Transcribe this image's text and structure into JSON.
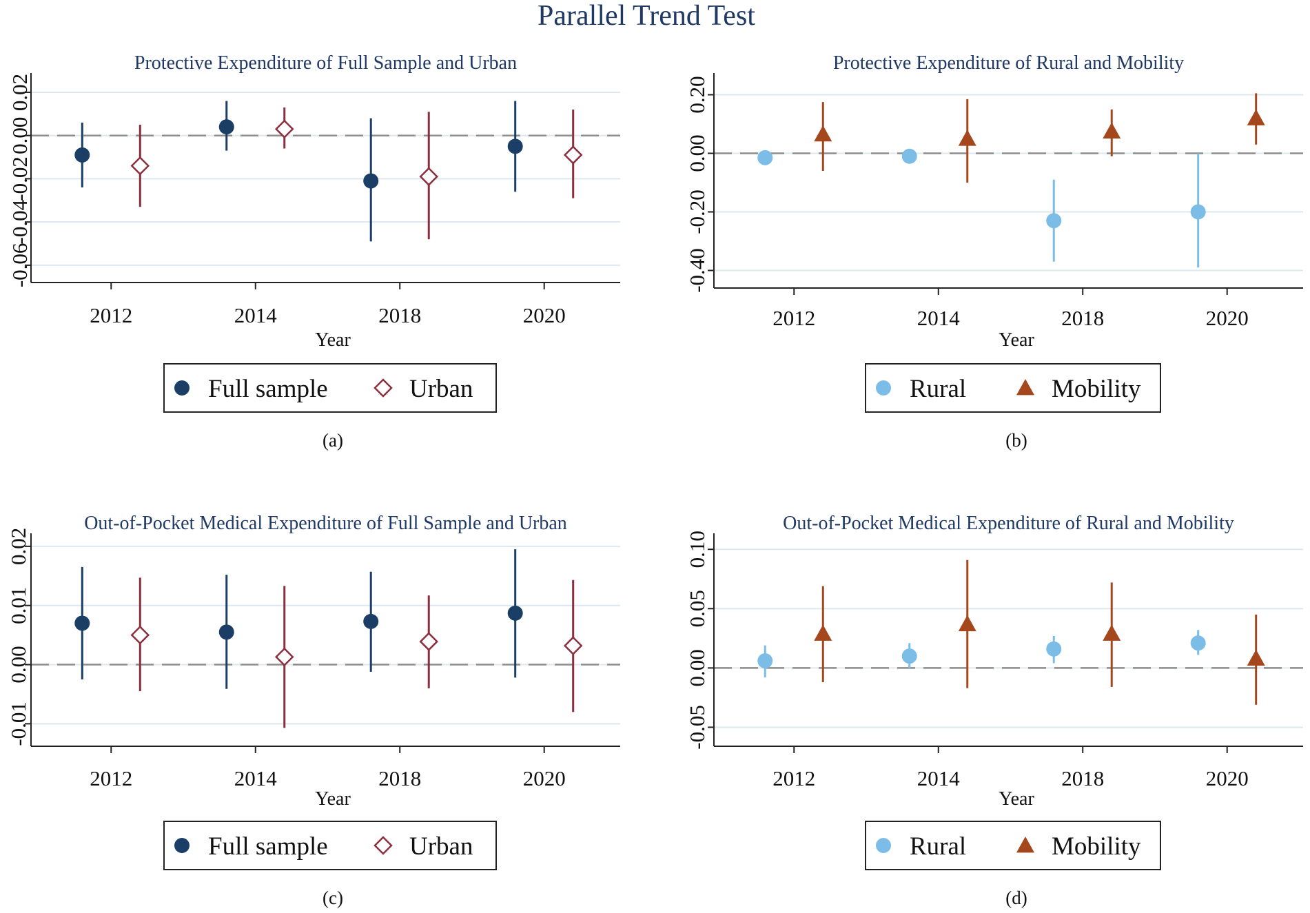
{
  "figure_title": "Parallel Trend Test",
  "colors": {
    "full_sample": "#1a3e66",
    "urban": "#8b2e3e",
    "rural": "#7bbde6",
    "mobility": "#a5471d",
    "title": "#1f3864",
    "grid": "#dde7ee",
    "zero_line": "#8c8c8c"
  },
  "chart_data": [
    {
      "type": "scatter",
      "caption": "(a)",
      "title": "Protective Expenditure of Full Sample and Urban",
      "xlabel": "Year",
      "ylabel": "",
      "categories": [
        "2012",
        "2014",
        "2018",
        "2020"
      ],
      "ylim": [
        -0.068,
        0.027
      ],
      "yticks": [
        -0.06,
        -0.04,
        -0.02,
        0.0,
        0.02
      ],
      "ytick_labels": [
        "-0.06",
        "-0.04",
        "-0.02",
        "0.00",
        "0.02"
      ],
      "grid": true,
      "legend_position": "bottom",
      "series": [
        {
          "name": "Full sample",
          "marker": "circle",
          "color_key": "full_sample",
          "values": [
            -0.009,
            0.004,
            -0.021,
            -0.005
          ],
          "lower": [
            -0.024,
            -0.007,
            -0.049,
            -0.026
          ],
          "upper": [
            0.006,
            0.016,
            0.008,
            0.016
          ]
        },
        {
          "name": "Urban",
          "marker": "diamond",
          "color_key": "urban",
          "values": [
            -0.014,
            0.003,
            -0.019,
            -0.009
          ],
          "lower": [
            -0.033,
            -0.006,
            -0.048,
            -0.029
          ],
          "upper": [
            0.005,
            0.013,
            0.011,
            0.012
          ]
        }
      ]
    },
    {
      "type": "scatter",
      "caption": "(b)",
      "title": "Protective Expenditure of Rural and Mobility",
      "xlabel": "Year",
      "ylabel": "",
      "categories": [
        "2012",
        "2014",
        "2018",
        "2020"
      ],
      "ylim": [
        -0.46,
        0.26
      ],
      "yticks": [
        -0.4,
        -0.2,
        0.0,
        0.2
      ],
      "ytick_labels": [
        "-0.40",
        "-0.20",
        "0.00",
        "0.20"
      ],
      "grid": true,
      "legend_position": "bottom",
      "series": [
        {
          "name": "Rural",
          "marker": "circle",
          "color_key": "rural",
          "values": [
            -0.015,
            -0.01,
            -0.23,
            -0.2
          ],
          "lower": null,
          "upper": [
            null,
            null,
            -0.09,
            0.0
          ],
          "upper_values_note": "",
          "ci_low": [
            -0.015,
            -0.01,
            -0.37,
            -0.39
          ],
          "ci_high": [
            -0.015,
            -0.01,
            -0.09,
            0.0
          ]
        },
        {
          "name": "Mobility",
          "marker": "triangle",
          "color_key": "mobility",
          "values": [
            0.065,
            0.05,
            0.075,
            0.12
          ],
          "ci_low": [
            -0.06,
            -0.1,
            -0.01,
            0.03
          ],
          "ci_high": [
            0.175,
            0.185,
            0.15,
            0.205
          ]
        }
      ]
    },
    {
      "type": "scatter",
      "caption": "(c)",
      "title": "Out-of-Pocket Medical Expenditure of Full Sample and Urban",
      "xlabel": "Year",
      "ylabel": "",
      "categories": [
        "2012",
        "2014",
        "2018",
        "2020"
      ],
      "ylim": [
        -0.0138,
        0.0215
      ],
      "yticks": [
        -0.01,
        0.0,
        0.01,
        0.02
      ],
      "ytick_labels": [
        "-0.01",
        "0.00",
        "0.01",
        "0.02"
      ],
      "grid": true,
      "legend_position": "bottom",
      "series": [
        {
          "name": "Full sample",
          "marker": "circle",
          "color_key": "full_sample",
          "values": [
            0.007,
            0.0055,
            0.0073,
            0.0087
          ],
          "ci_low": [
            -0.0025,
            -0.0041,
            -0.0012,
            -0.0022
          ],
          "ci_high": [
            0.0165,
            0.0152,
            0.0157,
            0.0195
          ]
        },
        {
          "name": "Urban",
          "marker": "diamond",
          "color_key": "urban",
          "values": [
            0.005,
            0.0013,
            0.0039,
            0.0032
          ],
          "ci_low": [
            -0.0045,
            -0.0107,
            -0.004,
            -0.008
          ],
          "ci_high": [
            0.0147,
            0.0133,
            0.0117,
            0.0143
          ]
        }
      ]
    },
    {
      "type": "scatter",
      "caption": "(d)",
      "title": "Out-of-Pocket Medical Expenditure of Rural and Mobility",
      "xlabel": "Year",
      "ylabel": "",
      "categories": [
        "2012",
        "2014",
        "2018",
        "2020"
      ],
      "ylim": [
        -0.066,
        0.11
      ],
      "yticks": [
        -0.05,
        0.0,
        0.05,
        0.1
      ],
      "ytick_labels": [
        "-0.05",
        "0.00",
        "0.05",
        "0.10"
      ],
      "grid": true,
      "legend_position": "bottom",
      "series": [
        {
          "name": "Rural",
          "marker": "circle",
          "color_key": "rural",
          "values": [
            0.006,
            0.01,
            0.016,
            0.021
          ],
          "ci_low": [
            -0.008,
            0.0,
            0.004,
            0.011
          ],
          "ci_high": [
            0.019,
            0.021,
            0.027,
            0.032
          ]
        },
        {
          "name": "Mobility",
          "marker": "triangle",
          "color_key": "mobility",
          "values": [
            0.029,
            0.037,
            0.029,
            0.008
          ],
          "ci_low": [
            -0.012,
            -0.017,
            -0.016,
            -0.031
          ],
          "ci_high": [
            0.069,
            0.091,
            0.072,
            0.045
          ]
        }
      ]
    }
  ]
}
